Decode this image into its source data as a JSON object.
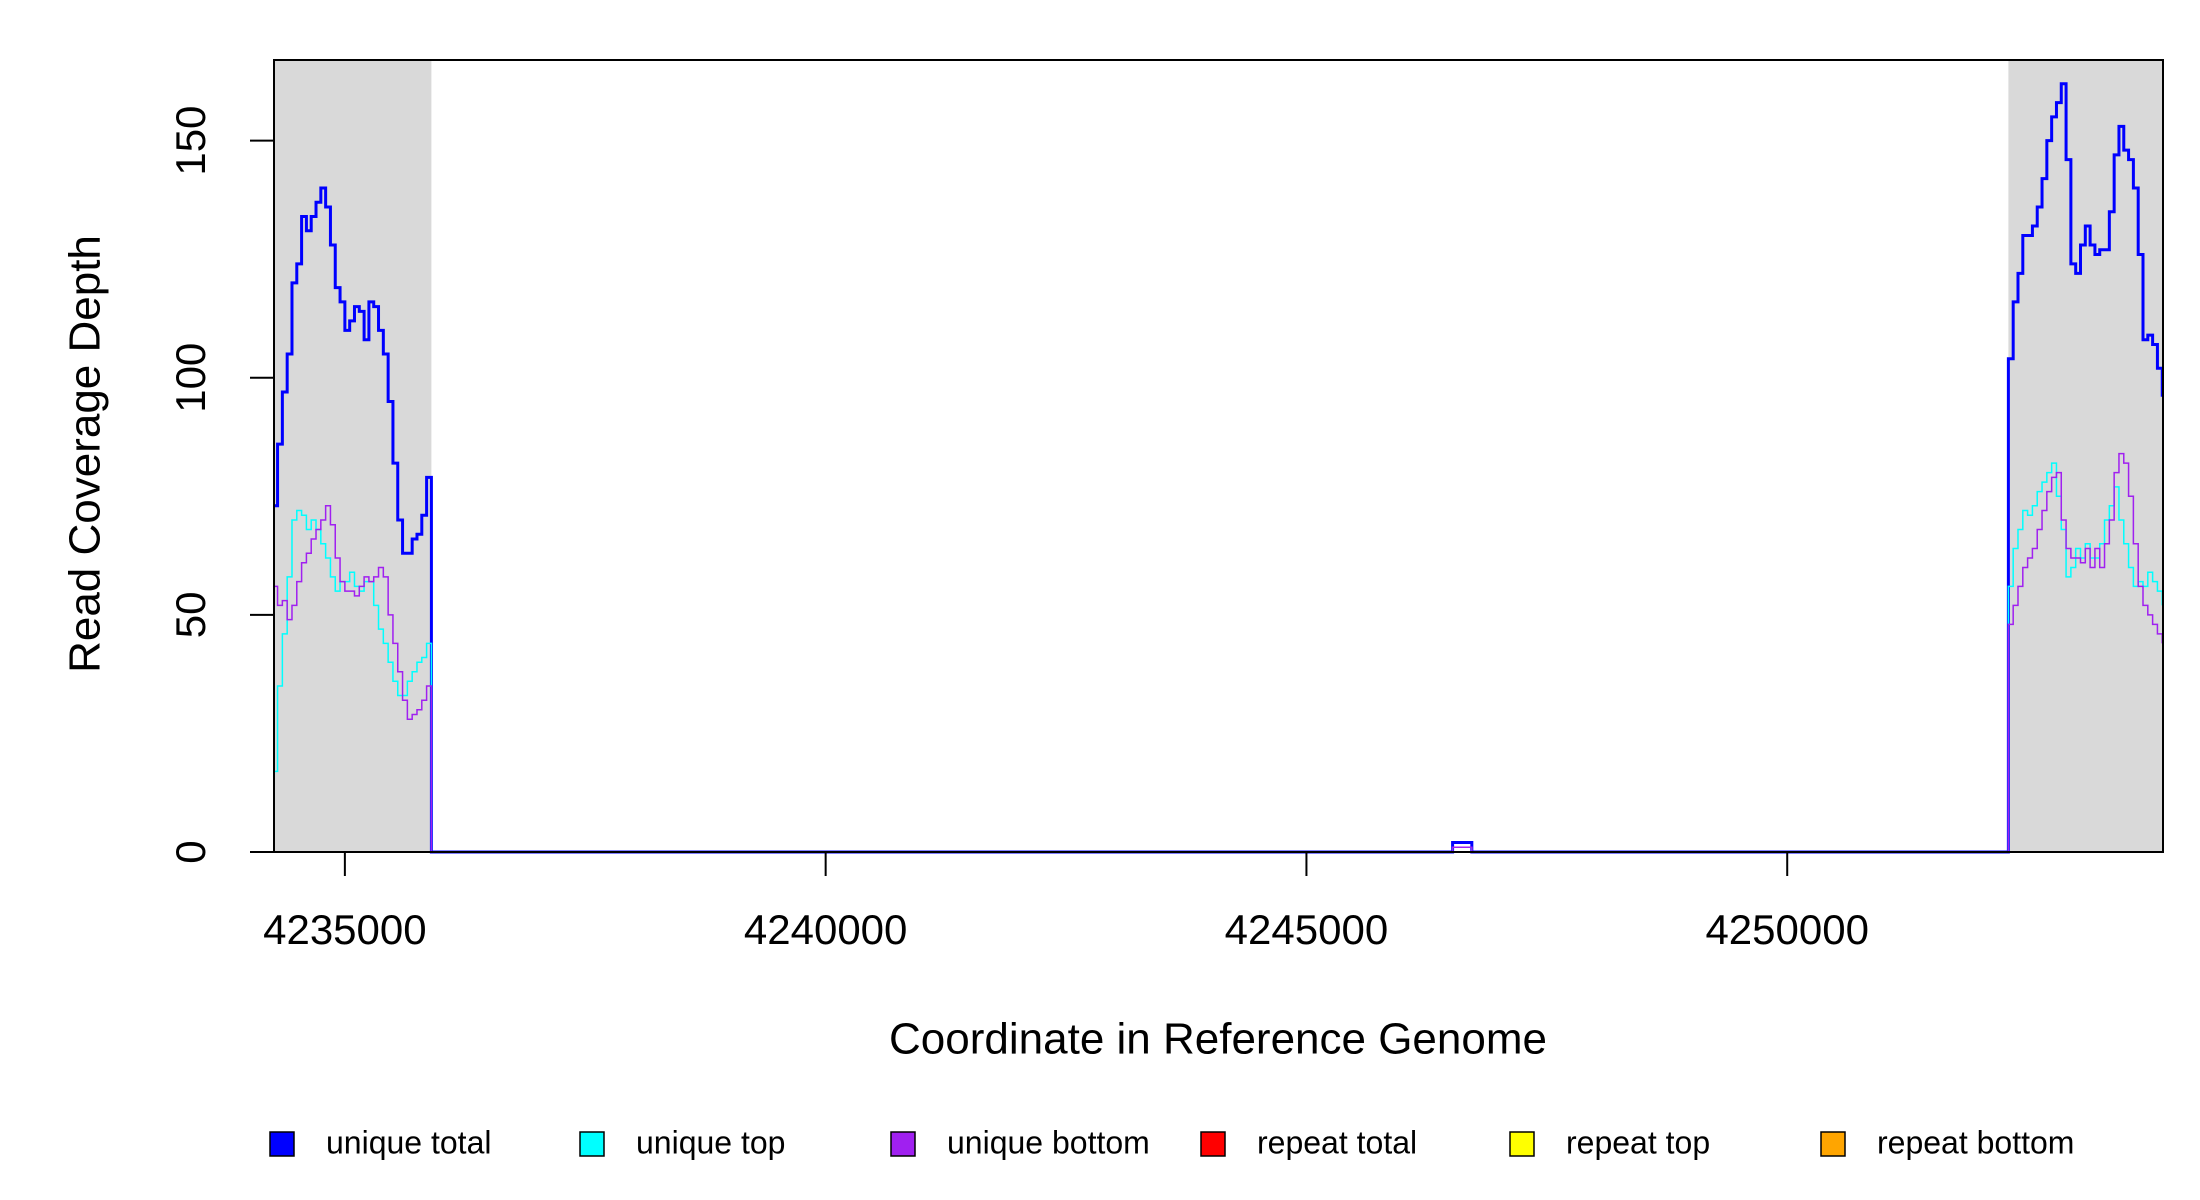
{
  "chart_data": {
    "type": "step-line",
    "x_label": "Coordinate in Reference Genome",
    "y_label": "Read Coverage Depth",
    "xlim": [
      4234263,
      4253908
    ],
    "ylim": [
      0,
      167
    ],
    "xticks": [
      4235000,
      4240000,
      4245000,
      4250000
    ],
    "yticks": [
      0,
      50,
      100,
      150
    ],
    "shaded_regions": [
      [
        4234263,
        4235900
      ],
      [
        4252300,
        4253908
      ]
    ],
    "shade_color": "#d9d9d9",
    "x": [
      4234270,
      4234300,
      4234350,
      4234400,
      4234450,
      4234500,
      4234550,
      4234600,
      4234650,
      4234700,
      4234750,
      4234800,
      4234850,
      4234900,
      4234950,
      4235000,
      4235050,
      4235100,
      4235150,
      4235200,
      4235250,
      4235300,
      4235350,
      4235400,
      4235450,
      4235500,
      4235550,
      4235600,
      4235650,
      4235700,
      4235750,
      4235800,
      4235850,
      4235900,
      4246520,
      4246720,
      4252300,
      4252350,
      4252400,
      4252450,
      4252500,
      4252550,
      4252600,
      4252650,
      4252700,
      4252750,
      4252800,
      4252850,
      4252900,
      4252950,
      4253000,
      4253050,
      4253100,
      4253150,
      4253200,
      4253250,
      4253300,
      4253350,
      4253400,
      4253450,
      4253500,
      4253550,
      4253600,
      4253650,
      4253700,
      4253750,
      4253800,
      4253850,
      4253900
    ],
    "series": [
      {
        "name": "unique total",
        "color": "#0000ff",
        "width": 3,
        "values": [
          73,
          86,
          97,
          105,
          120,
          124,
          134,
          131,
          134,
          137,
          140,
          136,
          128,
          119,
          116,
          110,
          112,
          115,
          114,
          108,
          116,
          115,
          110,
          105,
          95,
          82,
          70,
          63,
          63,
          66,
          67,
          71,
          79,
          0,
          2,
          0,
          104,
          116,
          122,
          130,
          130,
          132,
          136,
          142,
          150,
          155,
          158,
          162,
          146,
          124,
          122,
          128,
          132,
          128,
          126,
          127,
          127,
          135,
          147,
          153,
          148,
          146,
          140,
          126,
          108,
          109,
          107,
          102,
          96
        ]
      },
      {
        "name": "unique top",
        "color": "#00ffff",
        "width": 1.5,
        "values": [
          17,
          35,
          46,
          58,
          70,
          72,
          71,
          68,
          70,
          68,
          65,
          62,
          58,
          55,
          57,
          57,
          59,
          56,
          55,
          57,
          57,
          52,
          47,
          44,
          40,
          36,
          33,
          33,
          36,
          38,
          40,
          41,
          44,
          0,
          1,
          0,
          56,
          64,
          68,
          72,
          71,
          73,
          76,
          78,
          80,
          82,
          75,
          68,
          58,
          60,
          64,
          62,
          65,
          62,
          62,
          65,
          70,
          73,
          77,
          70,
          65,
          60,
          56,
          57,
          56,
          59,
          57,
          55,
          52
        ]
      },
      {
        "name": "unique bottom",
        "color": "#a020f0",
        "width": 1.5,
        "values": [
          56,
          52,
          53,
          49,
          52,
          57,
          61,
          63,
          66,
          68,
          70,
          73,
          69,
          62,
          57,
          55,
          55,
          54,
          56,
          58,
          57,
          58,
          60,
          58,
          50,
          44,
          38,
          32,
          28,
          29,
          30,
          32,
          35,
          0,
          1,
          0,
          48,
          52,
          56,
          60,
          62,
          64,
          68,
          72,
          76,
          79,
          80,
          70,
          64,
          62,
          62,
          61,
          64,
          60,
          64,
          60,
          65,
          70,
          80,
          84,
          82,
          75,
          65,
          56,
          52,
          50,
          48,
          46,
          44
        ]
      },
      {
        "name": "repeat total",
        "color": "#ff0000",
        "width": 1.5,
        "values": [
          0,
          0,
          0,
          0,
          0,
          0,
          0,
          0,
          0,
          0,
          0,
          0,
          0,
          0,
          0,
          0,
          0,
          0,
          0,
          0,
          0,
          0,
          0,
          0,
          0,
          0,
          0,
          0,
          0,
          0,
          0,
          0,
          0,
          0,
          0,
          0,
          0,
          0,
          0,
          0,
          0,
          0,
          0,
          0,
          0,
          0,
          0,
          0,
          0,
          0,
          0,
          0,
          0,
          0,
          0,
          0,
          0,
          0,
          0,
          0,
          0,
          0,
          0,
          0,
          0,
          0,
          0,
          0,
          0
        ]
      },
      {
        "name": "repeat top",
        "color": "#ffff00",
        "width": 1.5,
        "values": [
          0,
          0,
          0,
          0,
          0,
          0,
          0,
          0,
          0,
          0,
          0,
          0,
          0,
          0,
          0,
          0,
          0,
          0,
          0,
          0,
          0,
          0,
          0,
          0,
          0,
          0,
          0,
          0,
          0,
          0,
          0,
          0,
          0,
          0,
          0,
          0,
          0,
          0,
          0,
          0,
          0,
          0,
          0,
          0,
          0,
          0,
          0,
          0,
          0,
          0,
          0,
          0,
          0,
          0,
          0,
          0,
          0,
          0,
          0,
          0,
          0,
          0,
          0,
          0,
          0,
          0,
          0,
          0,
          0
        ]
      },
      {
        "name": "repeat bottom",
        "color": "#ffa500",
        "width": 1.5,
        "values": [
          0,
          0,
          0,
          0,
          0,
          0,
          0,
          0,
          0,
          0,
          0,
          0,
          0,
          0,
          0,
          0,
          0,
          0,
          0,
          0,
          0,
          0,
          0,
          0,
          0,
          0,
          0,
          0,
          0,
          0,
          0,
          0,
          0,
          0,
          0,
          0,
          0,
          0,
          0,
          0,
          0,
          0,
          0,
          0,
          0,
          0,
          0,
          0,
          0,
          0,
          0,
          0,
          0,
          0,
          0,
          0,
          0,
          0,
          0,
          0,
          0,
          0,
          0,
          0,
          0,
          0,
          0,
          0,
          0
        ]
      }
    ]
  }
}
